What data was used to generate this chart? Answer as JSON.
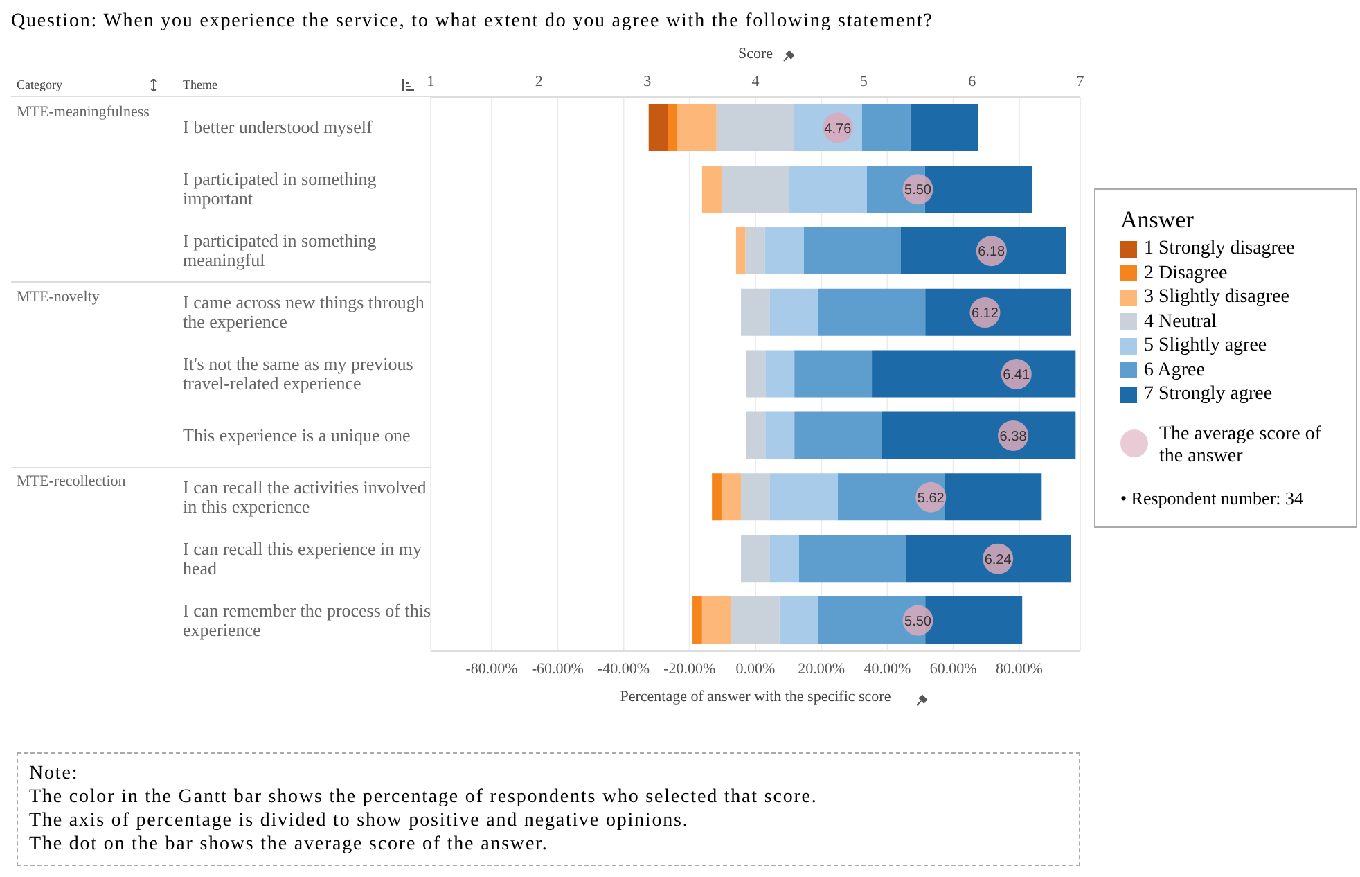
{
  "chart_data": {
    "type": "bar",
    "orientation": "horizontal",
    "title": "Question: When you experience the service, to what extent do you agree with the following statement?",
    "categories": [
      "I better understood myself",
      "I participated in something important",
      "I participated in something meaningful",
      "I came across new things through the experience",
      "It's not the same as my previous travel-related experience",
      "This experience is a unique one",
      "I can recall the activities involved in this experience",
      "I can recall this experience in my head",
      "I can remember the process of this experience"
    ],
    "series": [
      {
        "name": "1 Strongly disagree",
        "color": "#c65a12",
        "values": [
          5.9,
          null,
          null,
          null,
          null,
          null,
          null,
          null,
          null
        ],
        "base": [
          -32.4,
          null,
          null,
          null,
          null,
          null,
          null,
          null,
          null
        ]
      },
      {
        "name": "2 Disagree",
        "color": "#f5841c",
        "values": [
          2.9,
          null,
          null,
          null,
          null,
          null,
          2.9,
          null,
          2.9
        ],
        "base": [
          -26.5,
          null,
          null,
          null,
          null,
          null,
          -13.2,
          null,
          -19.1
        ]
      },
      {
        "name": "3 Slightly disagree",
        "color": "#fdb879",
        "values": [
          11.8,
          5.9,
          2.9,
          null,
          null,
          null,
          5.9,
          null,
          8.8
        ],
        "base": [
          -23.6,
          -16.2,
          -5.9,
          null,
          null,
          null,
          -10.3,
          null,
          -16.2
        ]
      },
      {
        "name": "4 Neutral",
        "color": "#c9d1db",
        "values": [
          23.5,
          20.6,
          5.9,
          8.8,
          5.9,
          5.9,
          8.8,
          8.8,
          14.7
        ],
        "base": [
          -11.8,
          -10.3,
          -3.0,
          -4.4,
          -2.9,
          -2.9,
          -4.4,
          -4.4,
          -7.4
        ]
      },
      {
        "name": "5 Slightly agree",
        "color": "#a7cbe8",
        "values": [
          20.6,
          23.5,
          11.8,
          14.7,
          8.8,
          8.8,
          20.6,
          8.8,
          11.8
        ],
        "base": [
          11.7,
          10.3,
          2.9,
          4.4,
          3.0,
          3.0,
          4.4,
          4.4,
          7.3
        ]
      },
      {
        "name": "6 Agree",
        "color": "#5e9ecf",
        "values": [
          14.7,
          17.6,
          29.4,
          32.4,
          23.5,
          26.5,
          32.4,
          32.4,
          32.4
        ],
        "base": [
          32.3,
          33.8,
          14.7,
          19.1,
          11.8,
          11.8,
          25.0,
          13.2,
          19.1
        ]
      },
      {
        "name": "7 Strongly agree",
        "color": "#1c6aa8",
        "values": [
          20.6,
          32.4,
          50.0,
          44.1,
          61.8,
          58.8,
          29.4,
          50.0,
          29.4
        ],
        "base": [
          47.0,
          51.4,
          44.1,
          51.5,
          35.3,
          38.3,
          57.4,
          45.6,
          51.5
        ]
      },
      {
        "type": "scatter",
        "name": "The average score of the answer",
        "color": "#d9a9b8",
        "axis": "x2",
        "marker": "circle",
        "values": [
          4.76,
          5.5,
          6.18,
          6.12,
          6.41,
          6.38,
          5.62,
          6.24,
          5.5
        ],
        "value_labels": [
          "4.76",
          "5.50",
          "6.18",
          "6.12",
          "6.41",
          "6.38",
          "5.62",
          "6.24",
          "5.50"
        ]
      }
    ],
    "xlim": [
      -98.5,
      98.5
    ],
    "xticks": [
      {
        "value": -80,
        "label": "-80.00%"
      },
      {
        "value": -60,
        "label": "-60.00%"
      },
      {
        "value": -40,
        "label": "-40.00%"
      },
      {
        "value": -20,
        "label": "-20.00%"
      },
      {
        "value": 0,
        "label": "0.00%"
      },
      {
        "value": 20,
        "label": "20.00%"
      },
      {
        "value": 40,
        "label": "40.00%"
      },
      {
        "value": 60,
        "label": "60.00%"
      },
      {
        "value": 80,
        "label": "80.00%"
      }
    ],
    "x2lim": [
      1,
      7
    ],
    "x2ticks": [
      1,
      2,
      3,
      4,
      5,
      6,
      7
    ],
    "xlabel": "Percentage of answer with the specific score",
    "x2label": "Score",
    "legend_title": "Answer",
    "legend": "right",
    "grid": "x",
    "annotations": [
      "Category",
      "Theme",
      "MTE-meaningfulness",
      "MTE-novelty",
      "MTE-recollection",
      "• Respondent number: 34",
      "Note:\nThe color in the Gantt bar shows the percentage of respondents who selected that score.\nThe axis of percentage is divided to show positive and negative opinions.\nThe dot on the bar shows the average score of the answer."
    ]
  }
}
